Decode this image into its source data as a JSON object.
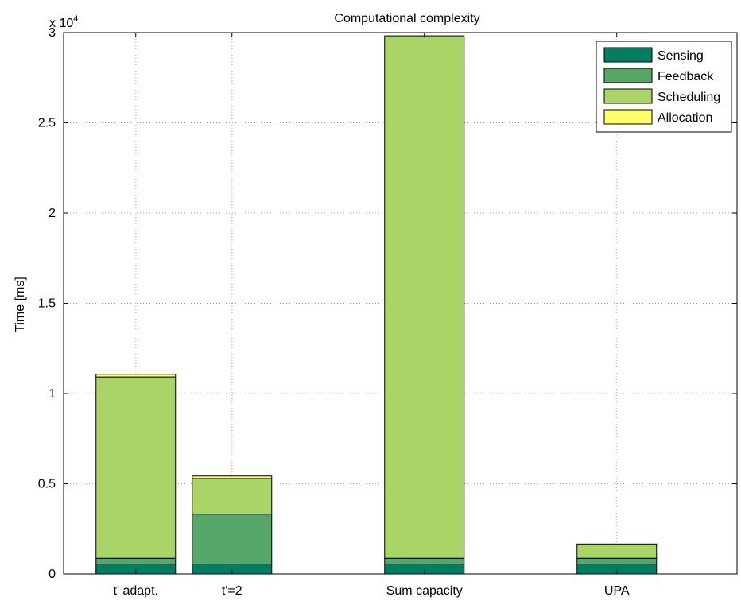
{
  "chart_data": {
    "type": "bar",
    "stacked": true,
    "title": "Computational complexity",
    "xlabel": "",
    "ylabel": "Time [ms]",
    "y_exponent_label": "x 10",
    "y_exponent_power": "4",
    "ylim": [
      0,
      30000
    ],
    "y_ticks": [
      0,
      5000,
      10000,
      15000,
      20000,
      25000,
      30000
    ],
    "y_tick_labels": [
      "0",
      "0.5",
      "1",
      "1.5",
      "2",
      "2.5",
      "3"
    ],
    "grid": true,
    "legend_position": "top-right",
    "categories": [
      "t' adapt.",
      "t'=2",
      "Sum capacity",
      "UPA"
    ],
    "x_positions": [
      1,
      2,
      4,
      6
    ],
    "xlim": [
      0.25,
      7.25
    ],
    "series": [
      {
        "name": "Sensing",
        "color": "#007e62",
        "values": [
          550,
          550,
          550,
          550
        ]
      },
      {
        "name": "Feedback",
        "color": "#55a868",
        "values": [
          320,
          2770,
          320,
          320
        ]
      },
      {
        "name": "Scheduling",
        "color": "#aad466",
        "values": [
          10050,
          1970,
          28950,
          790
        ]
      },
      {
        "name": "Allocation",
        "color": "#ffff66",
        "values": [
          150,
          140,
          0,
          0
        ]
      }
    ]
  }
}
